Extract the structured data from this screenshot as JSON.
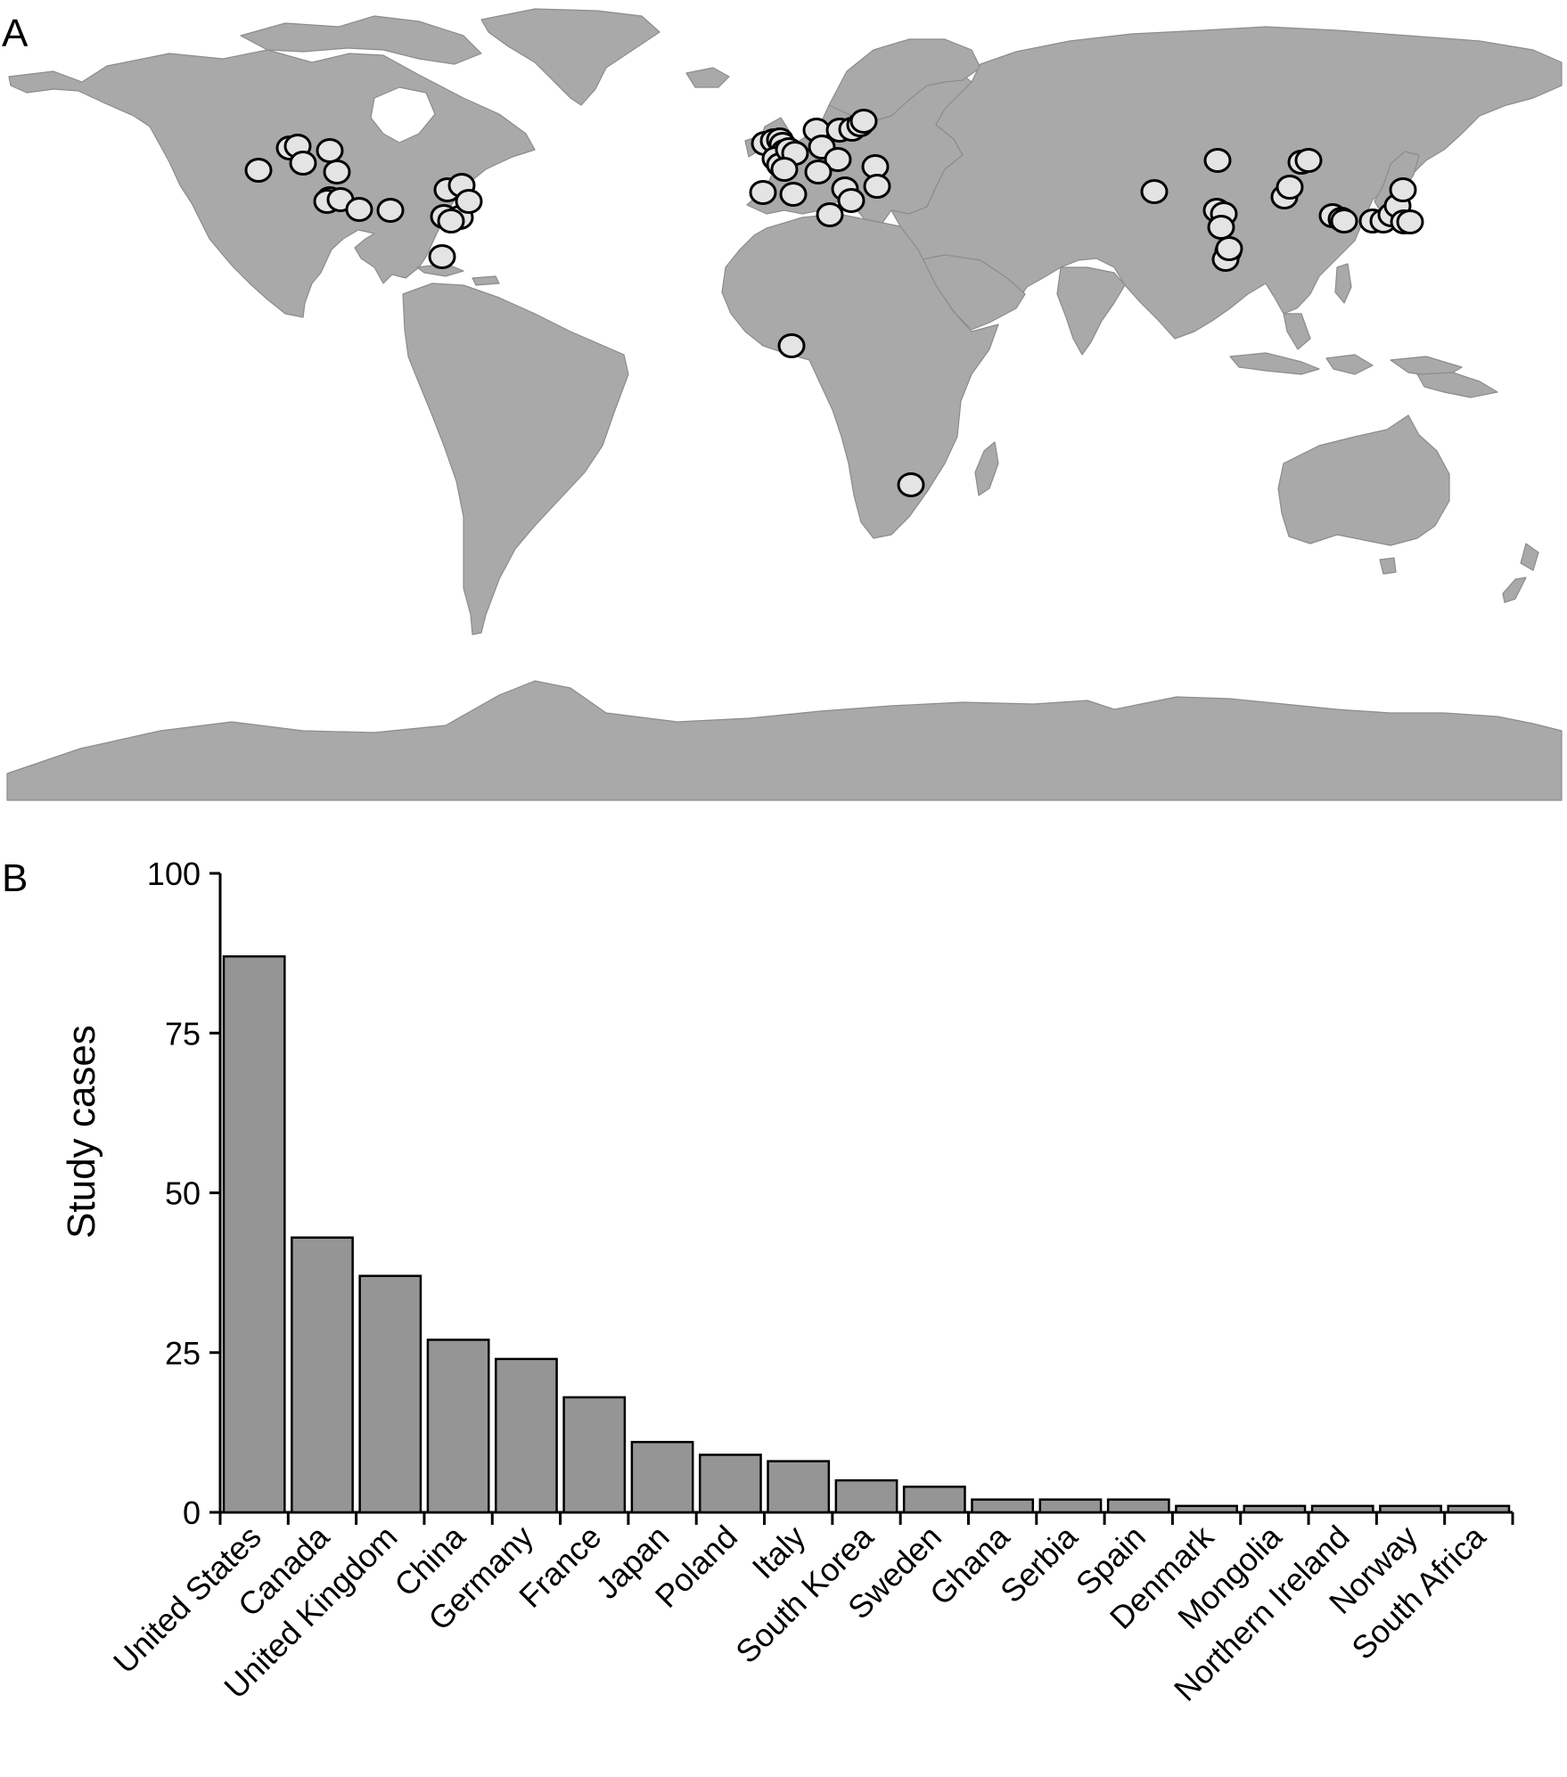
{
  "panels": {
    "map_label": "A",
    "bar_label": "B"
  },
  "colors": {
    "land": "#a9a9a9",
    "land_border": "#8c8c8c",
    "site_fill": "#e4e4e4",
    "site_stroke": "#000000",
    "bar_fill": "#959595",
    "bar_stroke": "#000000"
  },
  "map": {
    "projection": "equirectangular",
    "note_regions": [
      "North America",
      "Europe",
      "East Asia",
      "West Africa",
      "Southern Africa"
    ]
  },
  "chart_data": {
    "type": "bar",
    "title": "",
    "xlabel": "",
    "ylabel": "Study cases",
    "ylim": [
      0,
      100
    ],
    "yticks": [
      0,
      25,
      50,
      75,
      100
    ],
    "grid": false,
    "legend": "none",
    "categories": [
      "United States",
      "Canada",
      "United Kingdom",
      "China",
      "Germany",
      "France",
      "Japan",
      "Poland",
      "Italy",
      "South Korea",
      "Sweden",
      "Ghana",
      "Serbia",
      "Spain",
      "Denmark",
      "Mongolia",
      "Northern Ireland",
      "Norway",
      "South Africa"
    ],
    "values": [
      87,
      43,
      37,
      27,
      24,
      18,
      11,
      9,
      8,
      5,
      4,
      2,
      2,
      2,
      1,
      1,
      1,
      1,
      1
    ]
  }
}
